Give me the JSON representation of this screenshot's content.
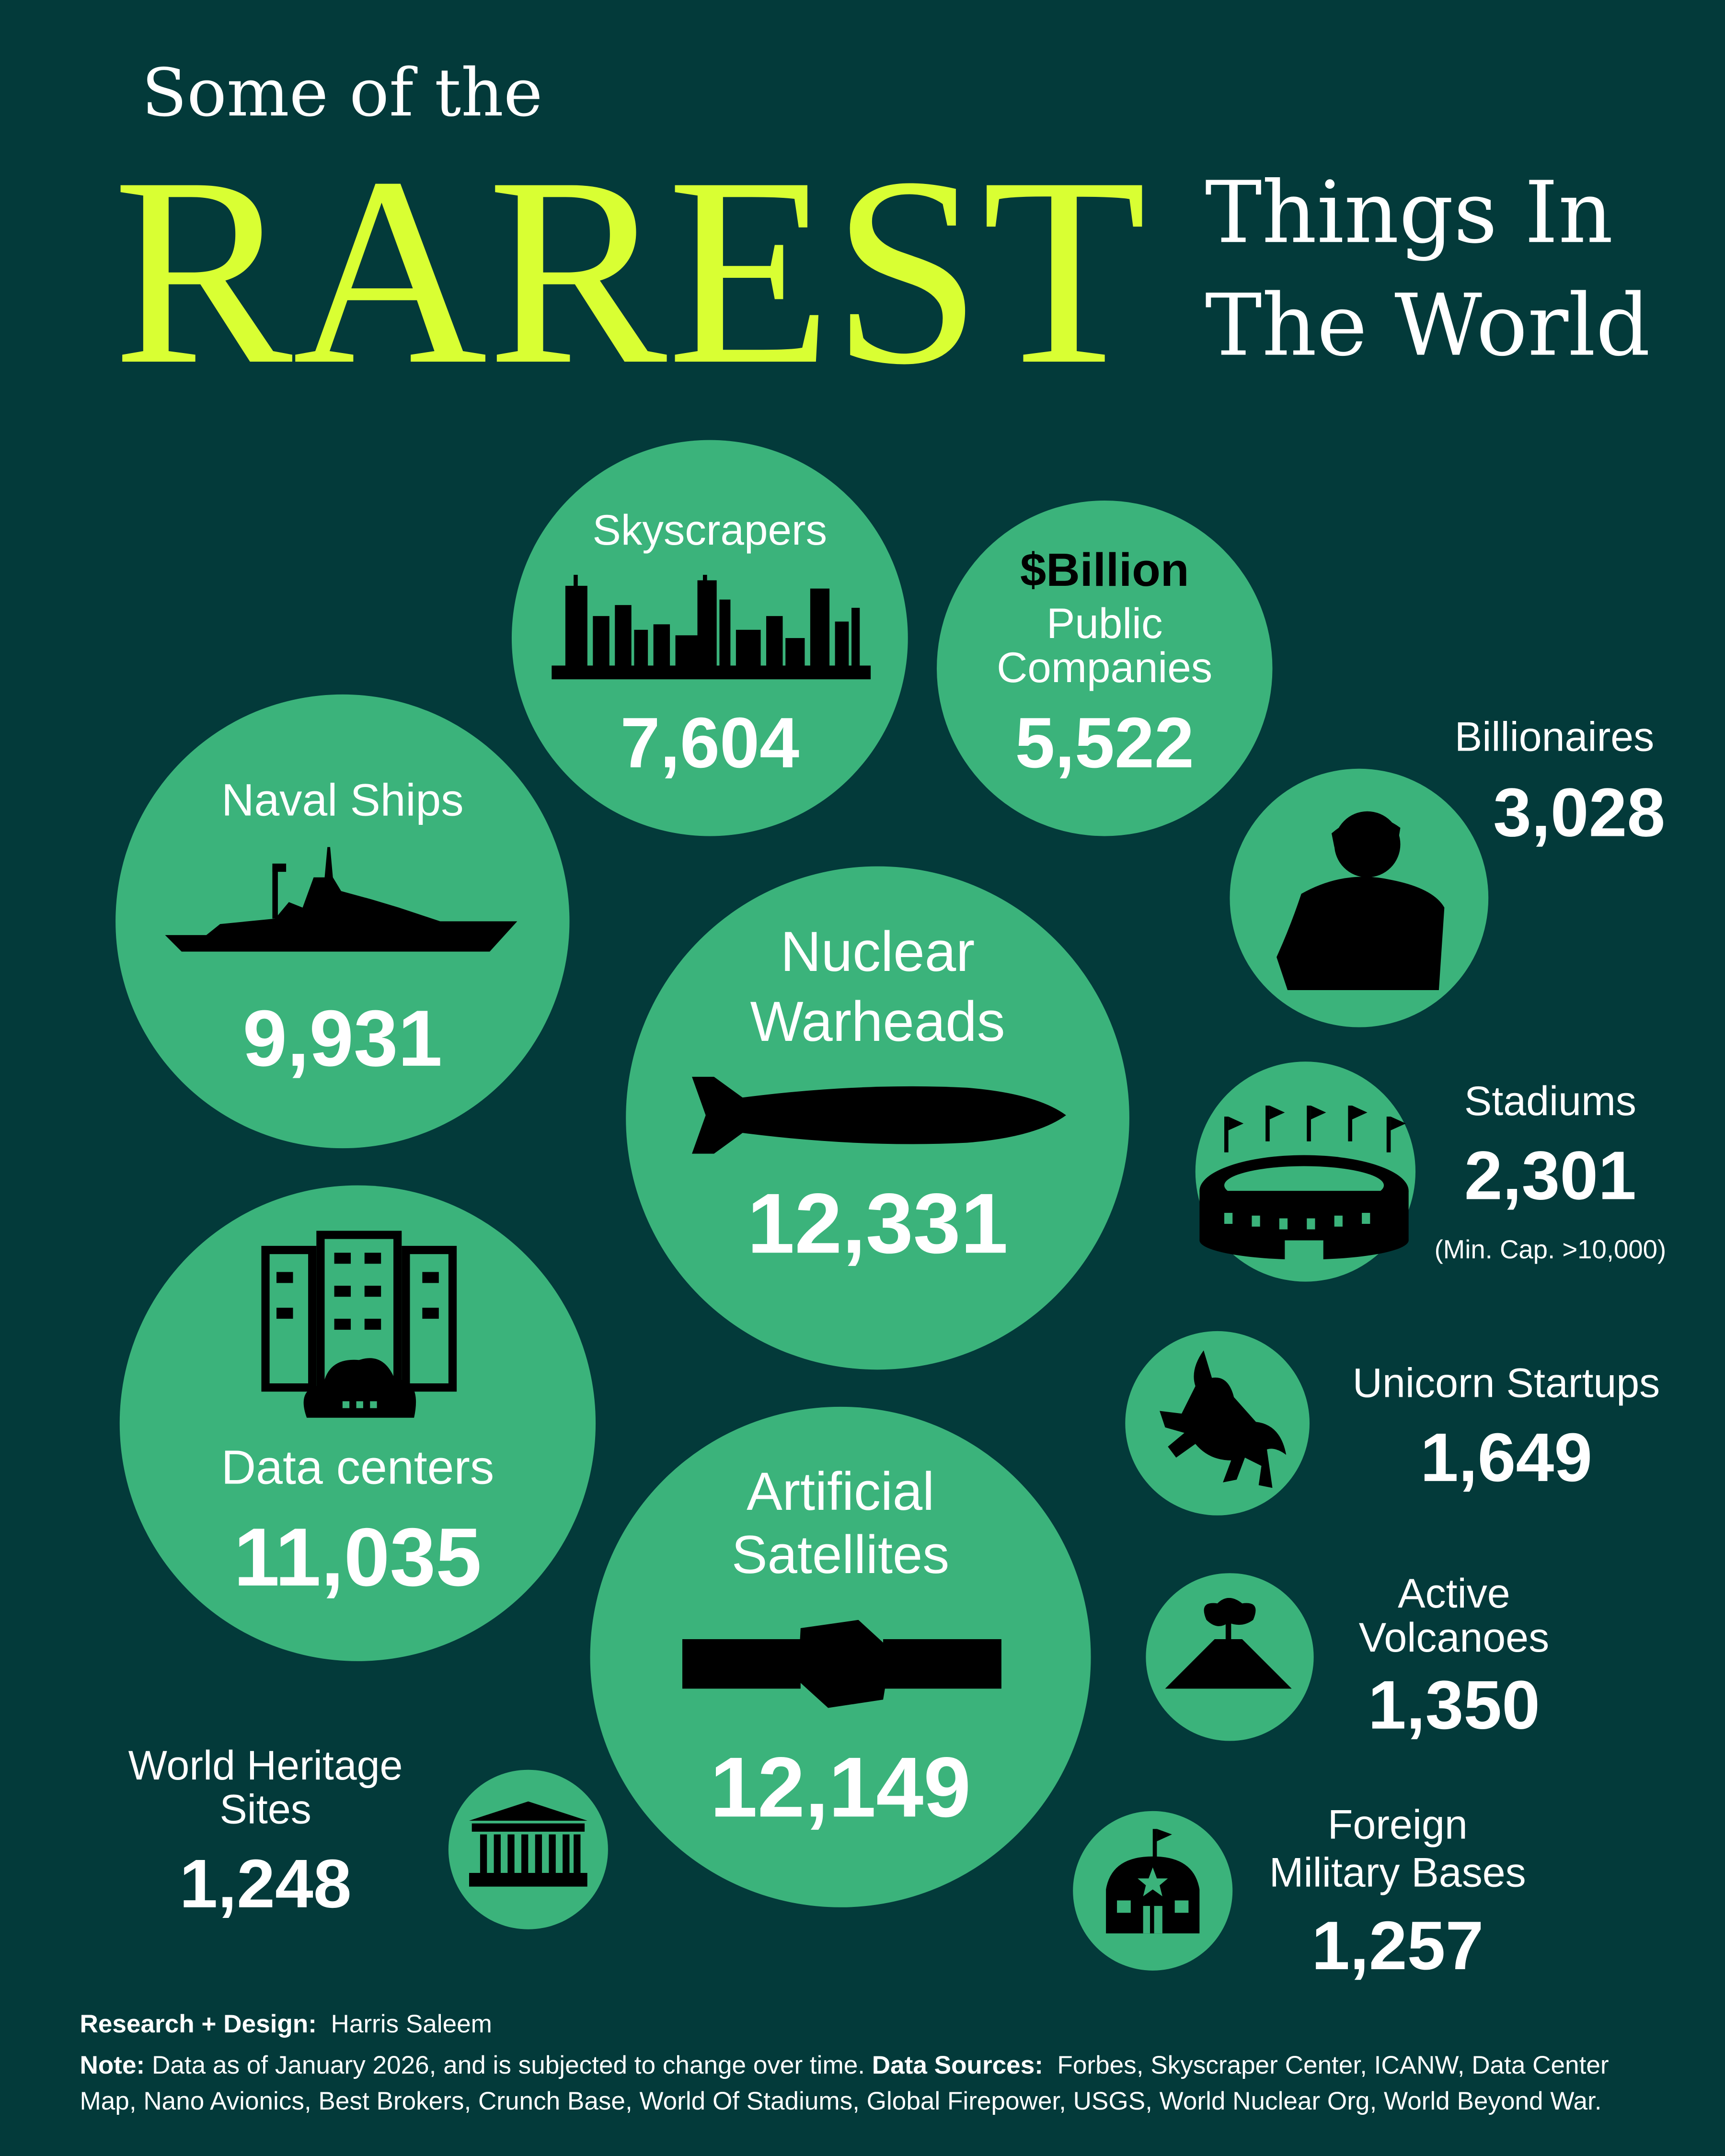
{
  "title": {
    "line1": "Some of the",
    "highlight": "RAREST",
    "line2a": "Things In",
    "line2b": "The World"
  },
  "colors": {
    "background": "#033a3a",
    "bubble": "#3bb37b",
    "highlight": "#d9ff33",
    "text": "#ffffff",
    "icon": "#000000"
  },
  "items": [
    {
      "id": "skyscrapers",
      "label": [
        "Skyscrapers"
      ],
      "value": "7,604",
      "icon": "skyline-icon"
    },
    {
      "id": "billion-companies",
      "label_accent": "$Billion",
      "label": [
        "Public",
        "Companies"
      ],
      "value": "5,522",
      "icon": ""
    },
    {
      "id": "naval-ships",
      "label": [
        "Naval Ships"
      ],
      "value": "9,931",
      "icon": "warship-icon"
    },
    {
      "id": "billionaires",
      "label": [
        "Billionaires"
      ],
      "value": "3,028",
      "icon": "person-silhouette-icon"
    },
    {
      "id": "nuclear-warheads",
      "label": [
        "Nuclear",
        "Warheads"
      ],
      "value": "12,331",
      "icon": "warhead-icon"
    },
    {
      "id": "stadiums",
      "label": [
        "Stadiums"
      ],
      "value": "2,301",
      "note": "(Min. Cap. >10,000)",
      "icon": "stadium-icon"
    },
    {
      "id": "data-centers",
      "label": [
        "Data centers"
      ],
      "value": "11,035",
      "icon": "server-cloud-icon"
    },
    {
      "id": "unicorn-startups",
      "label": [
        "Unicorn Startups"
      ],
      "value": "1,649",
      "icon": "unicorn-icon"
    },
    {
      "id": "artificial-satellites",
      "label": [
        "Artificial",
        "Satellites"
      ],
      "value": "12,149",
      "icon": "satellite-icon"
    },
    {
      "id": "active-volcanoes",
      "label": [
        "Active",
        "Volcanoes"
      ],
      "value": "1,350",
      "icon": "volcano-icon"
    },
    {
      "id": "world-heritage-sites",
      "label": [
        "World Heritage",
        "Sites"
      ],
      "value": "1,248",
      "icon": "temple-icon"
    },
    {
      "id": "foreign-military-bases",
      "label": [
        "Foreign",
        "Military Bases"
      ],
      "value": "1,257",
      "icon": "military-base-icon"
    }
  ],
  "footer": {
    "credit_label": "Research + Design:",
    "credit_name": "Harris Saleem",
    "note_label": "Note:",
    "note_text": "Data as of January 2026, and is subjected to change over time.",
    "sources_label": "Data Sources:",
    "sources_text": "Forbes, Skyscraper Center, ICANW, Data Center Map, Nano Avionics, Best Brokers, Crunch Base, World Of Stadiums, Global Firepower, USGS, World Nuclear Org, World Beyond War."
  }
}
